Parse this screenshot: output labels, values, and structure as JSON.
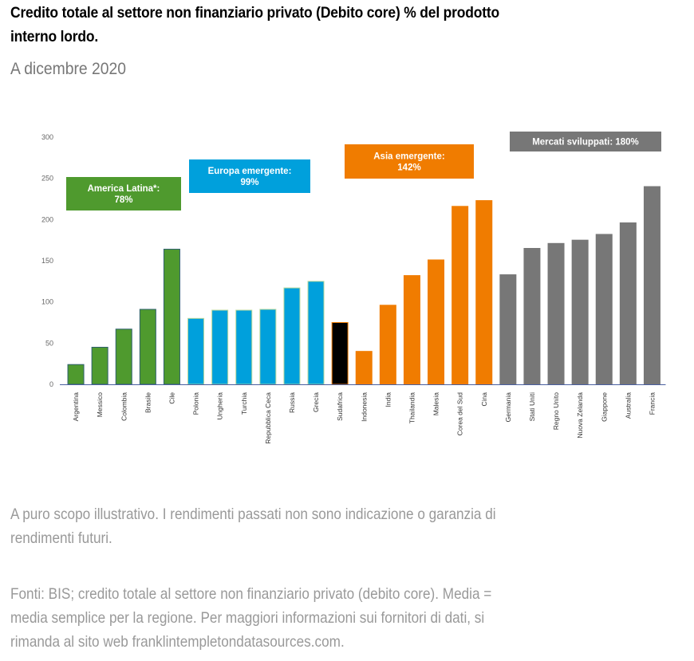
{
  "header": {
    "title_line1": "Credito totale al settore non finanziario privato (Debito core) % del prodotto",
    "title_line2": "interno lordo.",
    "subtitle": "A dicembre 2020"
  },
  "footer": {
    "disclaimer_line1": "A puro scopo illustrativo. I rendimenti passati non sono indicazione o garanzia di",
    "disclaimer_line2": "rendimenti futuri.",
    "sources_line1": "Fonti: BIS; credito totale al settore non finanziario privato (debito core). Media =",
    "sources_line2": "media semplice per la regione. Per maggiori informazioni sui fornitori di dati, si",
    "sources_line3": "rimanda al sito web franklintempletondatasources.com."
  },
  "chart_data": {
    "type": "bar",
    "title": "Credito totale al settore non finanziario privato (Debito core) % del prodotto interno lordo.",
    "subtitle": "A dicembre 2020",
    "xlabel": "",
    "ylabel": "",
    "ylim": [
      0,
      300
    ],
    "yticks": [
      0,
      50,
      100,
      150,
      200,
      250,
      300
    ],
    "grid": false,
    "categories": [
      "Argentina",
      "Messico",
      "Colombia",
      "Brasile",
      "Cile",
      "Polonia",
      "Ungheria",
      "Turchia",
      "Repubblica Ceca",
      "Russia",
      "Grecia",
      "Sudafrica",
      "Indonesia",
      "India",
      "Thailandia",
      "Malesia",
      "Corea del Sud",
      "Cina",
      "Germania",
      "Stati Uniti",
      "Regno Unito",
      "Nuova Zelanda",
      "Giappone",
      "Australia",
      "Francia"
    ],
    "values": [
      24,
      45,
      67,
      91,
      164,
      80,
      90,
      90,
      91,
      117,
      125,
      75,
      40,
      96,
      132,
      151,
      216,
      223,
      133,
      165,
      171,
      175,
      182,
      196,
      240
    ],
    "groups": [
      {
        "name": "America Latina",
        "label_line1": "America Latina*:",
        "label_line2": "78%",
        "average": 78,
        "color": "#4f9a2e",
        "categories": [
          "Argentina",
          "Messico",
          "Colombia",
          "Brasile",
          "Cile"
        ]
      },
      {
        "name": "Europa emergente",
        "label_line1": "Europa emergente:",
        "label_line2": "99%",
        "average": 99,
        "color": "#00a0dc",
        "categories": [
          "Polonia",
          "Ungheria",
          "Turchia",
          "Repubblica Ceca",
          "Russia",
          "Grecia"
        ]
      },
      {
        "name": "Sudafrica",
        "label_line1": "",
        "label_line2": "",
        "average": null,
        "color": "#000000",
        "categories": [
          "Sudafrica"
        ]
      },
      {
        "name": "Asia emergente",
        "label_line1": "Asia emergente:",
        "label_line2": "142%",
        "average": 142,
        "color": "#f07c00",
        "categories": [
          "Indonesia",
          "India",
          "Thailandia",
          "Malesia",
          "Corea del Sud",
          "Cina"
        ]
      },
      {
        "name": "Mercati sviluppati",
        "label_line1": "Mercati sviluppati: 180%",
        "label_line2": "",
        "average": 180,
        "color": "#777777",
        "categories": [
          "Germania",
          "Stati Uniti",
          "Regno Unito",
          "Nuova Zelanda",
          "Giappone",
          "Australia",
          "Francia"
        ]
      }
    ]
  }
}
